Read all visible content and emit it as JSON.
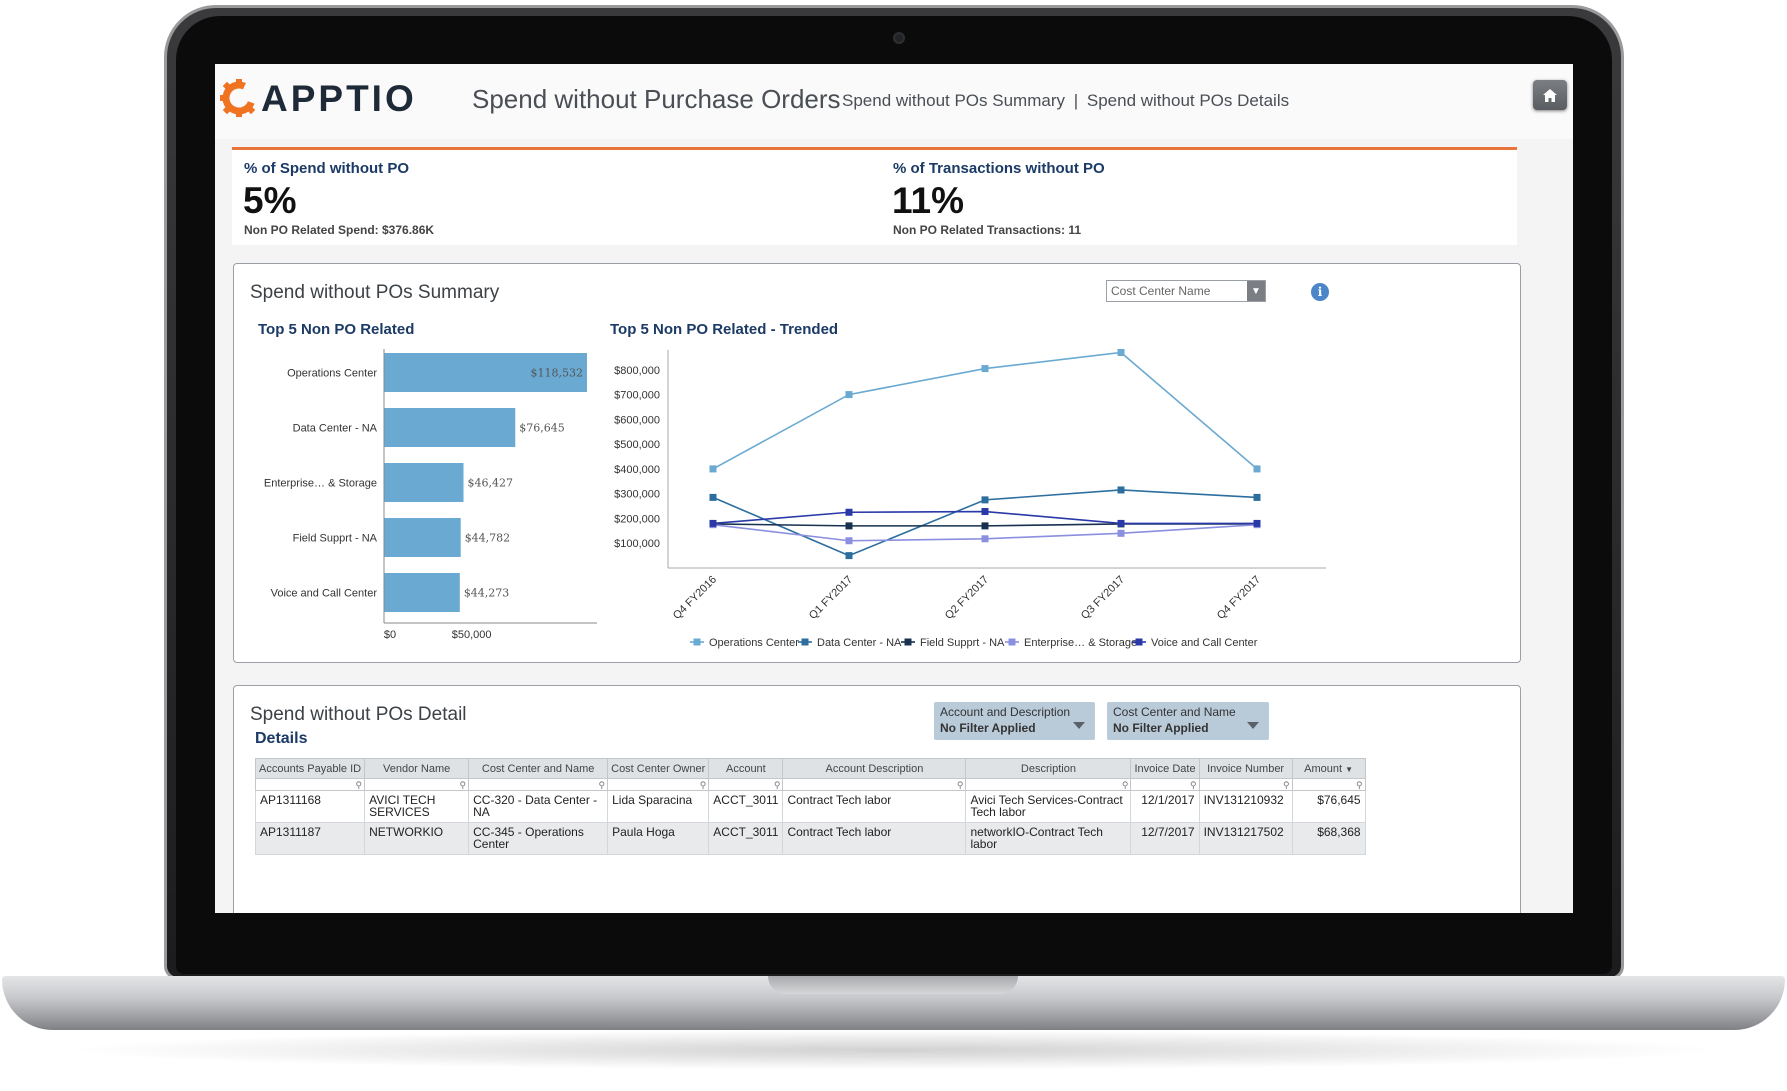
{
  "app": {
    "logo_text": "APPTIO",
    "page_title": "Spend without Purchase Orders",
    "links": [
      "Spend without POs Summary",
      "Spend without POs Details"
    ],
    "link_separator": "|"
  },
  "kpis": [
    {
      "title": "% of Spend without PO",
      "value": "5%",
      "sub": "Non PO Related Spend: $376.86K"
    },
    {
      "title": "% of Transactions without PO",
      "value": "11%",
      "sub": "Non PO Related Transactions: 11"
    }
  ],
  "summary": {
    "title": "Spend without POs Summary",
    "select_placeholder": "Cost Center Name",
    "info_icon": "info-icon"
  },
  "chart_data": [
    {
      "type": "bar",
      "orientation": "horizontal",
      "title": "Top 5 Non PO Related",
      "categories": [
        "Operations Center",
        "Data Center - NA",
        "Enterprise… & Storage",
        "Field Supprt - NA",
        "Voice and Call Center"
      ],
      "values": [
        118532,
        76645,
        46427,
        44782,
        44273
      ],
      "data_labels": [
        "$118,532",
        "$76,645",
        "$46,427",
        "$44,782",
        "$44,273"
      ],
      "x_ticks": [
        "$0",
        "$50,000"
      ],
      "xlim": [
        0,
        118532
      ],
      "color": "#6aaad2"
    },
    {
      "type": "line",
      "title": "Top 5 Non PO Related - Trended",
      "x": [
        "Q4 FY2016",
        "Q1 FY2017",
        "Q2 FY2017",
        "Q3 FY2017",
        "Q4 FY2017"
      ],
      "y_ticks": [
        "$100,000",
        "$200,000",
        "$300,000",
        "$400,000",
        "$500,000",
        "$600,000",
        "$700,000",
        "$800,000"
      ],
      "ylim": [
        0,
        880000
      ],
      "legend_position": "bottom",
      "series": [
        {
          "name": "Operations Center",
          "color": "#6aaad2",
          "values": [
            400000,
            700000,
            805000,
            870000,
            400000
          ]
        },
        {
          "name": "Data Center - NA",
          "color": "#2c6e9e",
          "values": [
            285000,
            50000,
            275000,
            315000,
            285000
          ]
        },
        {
          "name": "Field Supprt - NA",
          "color": "#17314f",
          "values": [
            178000,
            170000,
            170000,
            178000,
            178000
          ]
        },
        {
          "name": "Enterprise… & Storage",
          "color": "#8a8fe0",
          "values": [
            175000,
            110000,
            118000,
            140000,
            175000
          ]
        },
        {
          "name": "Voice and Call Center",
          "color": "#2a38a8",
          "values": [
            180000,
            225000,
            228000,
            180000,
            180000
          ]
        }
      ]
    }
  ],
  "detail": {
    "title": "Spend without POs Detail",
    "details_label": "Details",
    "filters": [
      {
        "label": "Account and Description",
        "value": "No Filter Applied"
      },
      {
        "label": "Cost Center and Name",
        "value": "No Filter Applied"
      }
    ],
    "columns": [
      "Accounts Payable ID",
      "Vendor Name",
      "Cost Center and Name",
      "Cost Center Owner",
      "Account",
      "Account Description",
      "Description",
      "Invoice Date",
      "Invoice Number",
      "Amount"
    ],
    "rows": [
      [
        "AP1311168",
        "AVICI TECH SERVICES",
        "CC-320 - Data Center - NA",
        "Lida Sparacina",
        "ACCT_3011",
        "Contract Tech labor",
        "Avici Tech Services-Contract Tech labor",
        "12/1/2017",
        "INV131210932",
        "$76,645"
      ],
      [
        "AP1311187",
        "NETWORKIO",
        "CC-345 - Operations Center",
        "Paula Hoga",
        "ACCT_3011",
        "Contract Tech labor",
        "networkIO-Contract Tech labor",
        "12/7/2017",
        "INV131217502",
        "$68,368"
      ]
    ]
  }
}
